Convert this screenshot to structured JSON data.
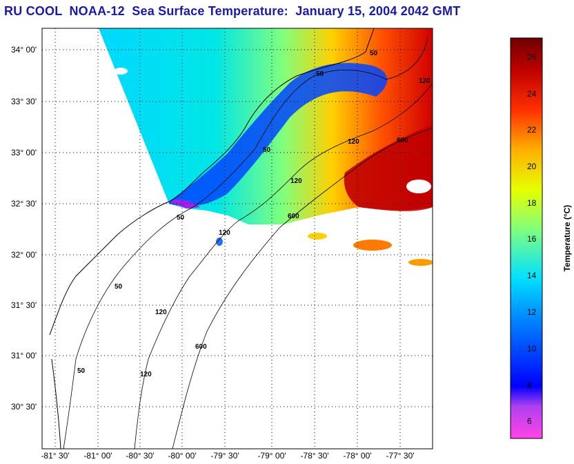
{
  "title": "RU COOL  NOAA-12  Sea Surface Temperature:  January 15, 2004 2042 GMT",
  "map": {
    "lat_ticks": [
      "34° 00'",
      "33° 30'",
      "33° 00'",
      "32° 30'",
      "32° 00'",
      "31° 30'",
      "31° 00'",
      "30° 30'"
    ],
    "lon_ticks": [
      "-81° 30'",
      "-81° 00'",
      "-80° 30'",
      "-80° 00'",
      "-79° 30'",
      "-79° 00'",
      "-78° 30'",
      "-78° 00'",
      "-77° 30'"
    ],
    "isobath_labels": [
      "50",
      "50",
      "50",
      "50",
      "50",
      "50",
      "120",
      "120",
      "120",
      "120",
      "120",
      "120",
      "600",
      "600",
      "600"
    ],
    "grid": true
  },
  "colorbar": {
    "label": "Temperature (°C)",
    "ticks": [
      "26",
      "24",
      "22",
      "20",
      "18",
      "16",
      "14",
      "12",
      "10",
      "8",
      "6"
    ],
    "range": [
      5,
      27
    ]
  },
  "colors": {
    "title": "#1a1aa6",
    "land_and_cloud": "#ffffff",
    "colormap": [
      "#ff44e6",
      "#8a2be2",
      "#0000ff",
      "#0077ff",
      "#00d8ff",
      "#7fff7f",
      "#e6ff00",
      "#ffb000",
      "#ff3000",
      "#a00000",
      "#700000"
    ]
  }
}
